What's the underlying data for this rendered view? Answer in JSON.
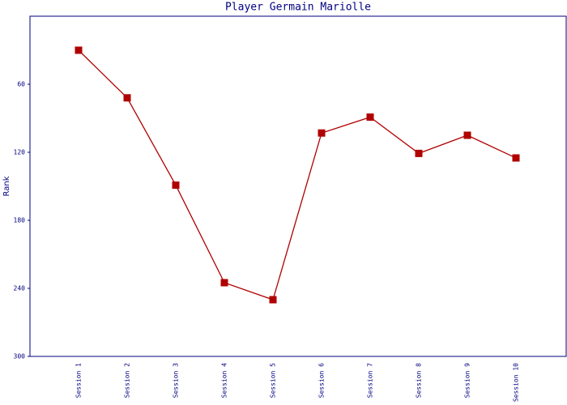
{
  "chart_data": {
    "type": "line",
    "title": "Player Germain Mariolle",
    "y_label": "Rank",
    "categories": [
      "Session 1",
      "Session 2",
      "Session 3",
      "Session 4",
      "Session 5",
      "Session 6",
      "Session 7",
      "Session 8",
      "Session 9",
      "Session 10"
    ],
    "series": [
      {
        "name": "Rank",
        "color": "#b00000",
        "values": [
          30,
          72,
          149,
          235,
          250,
          103,
          89,
          121,
          105,
          125
        ]
      }
    ],
    "ylim": [
      300,
      0
    ],
    "yticks": [
      60,
      120,
      180,
      240,
      300
    ]
  }
}
